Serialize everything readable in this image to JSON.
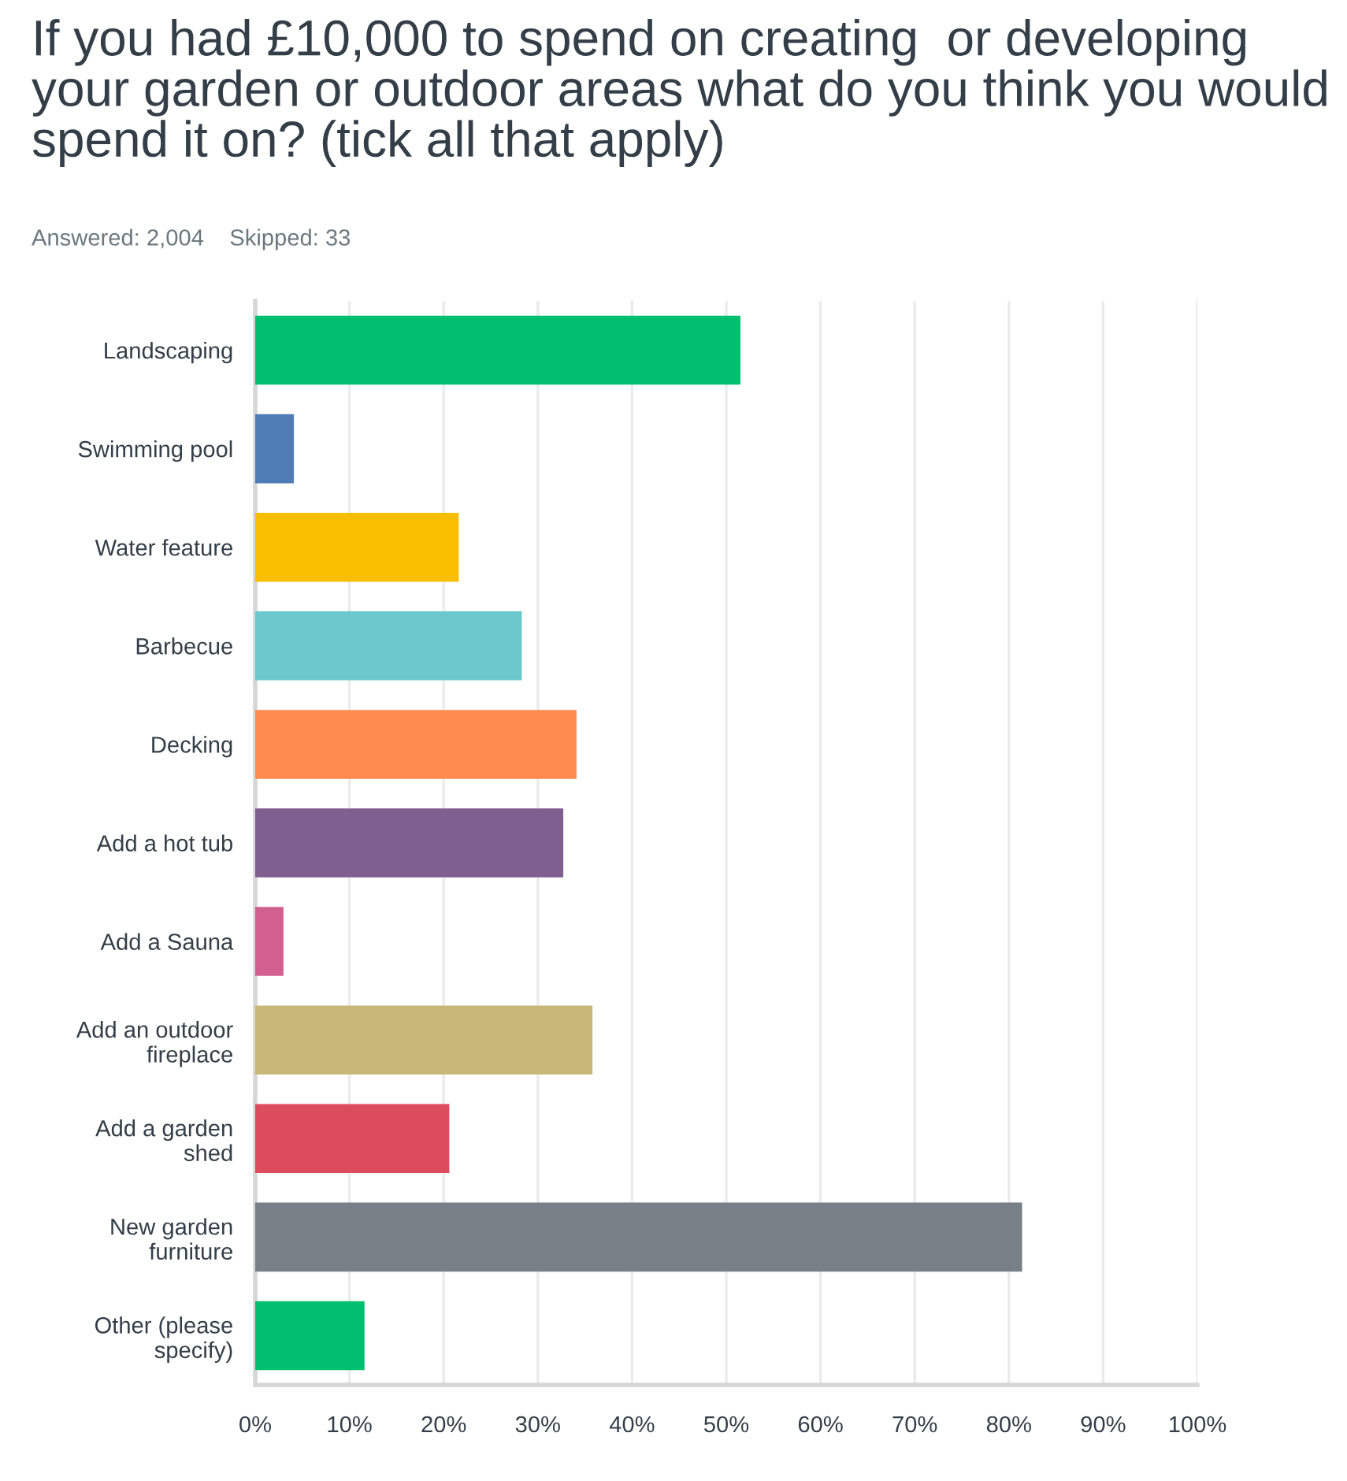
{
  "chart_data": {
    "type": "bar",
    "orientation": "horizontal",
    "title": "If you had £10,000 to spend on creating  or developing your garden or outdoor areas what do you think you would spend it on? (tick all that apply)",
    "subtitle": "Answered: 2,004    Skipped: 33",
    "categories": [
      "Landscaping",
      "Swimming pool",
      "Water feature",
      "Barbecue",
      "Decking",
      "Add a hot tub",
      "Add a Sauna",
      "Add an outdoor fireplace",
      "Add a garden shed",
      "New garden furniture",
      "Other (please specify)"
    ],
    "values": [
      51.5,
      4.1,
      21.6,
      28.3,
      34.1,
      32.7,
      3.0,
      35.8,
      20.6,
      81.4,
      11.6
    ],
    "colors": [
      "#00bf6f",
      "#507cb6",
      "#f9be00",
      "#6bc8cd",
      "#ff8b4f",
      "#7f5f90",
      "#d25f90",
      "#c7b879",
      "#dd4b5e",
      "#768086",
      "#00bf6f"
    ],
    "xlim": [
      0,
      100
    ],
    "xticks": [
      {
        "value": 0,
        "label": "0%"
      },
      {
        "value": 10,
        "label": "10%"
      },
      {
        "value": 20,
        "label": "20%"
      },
      {
        "value": 30,
        "label": "30%"
      },
      {
        "value": 40,
        "label": "40%"
      },
      {
        "value": 50,
        "label": "50%"
      },
      {
        "value": 60,
        "label": "60%"
      },
      {
        "value": 70,
        "label": "70%"
      },
      {
        "value": 80,
        "label": "80%"
      },
      {
        "value": 90,
        "label": "90%"
      },
      {
        "value": 100,
        "label": "100%"
      }
    ],
    "grid": "x",
    "legend": false
  }
}
